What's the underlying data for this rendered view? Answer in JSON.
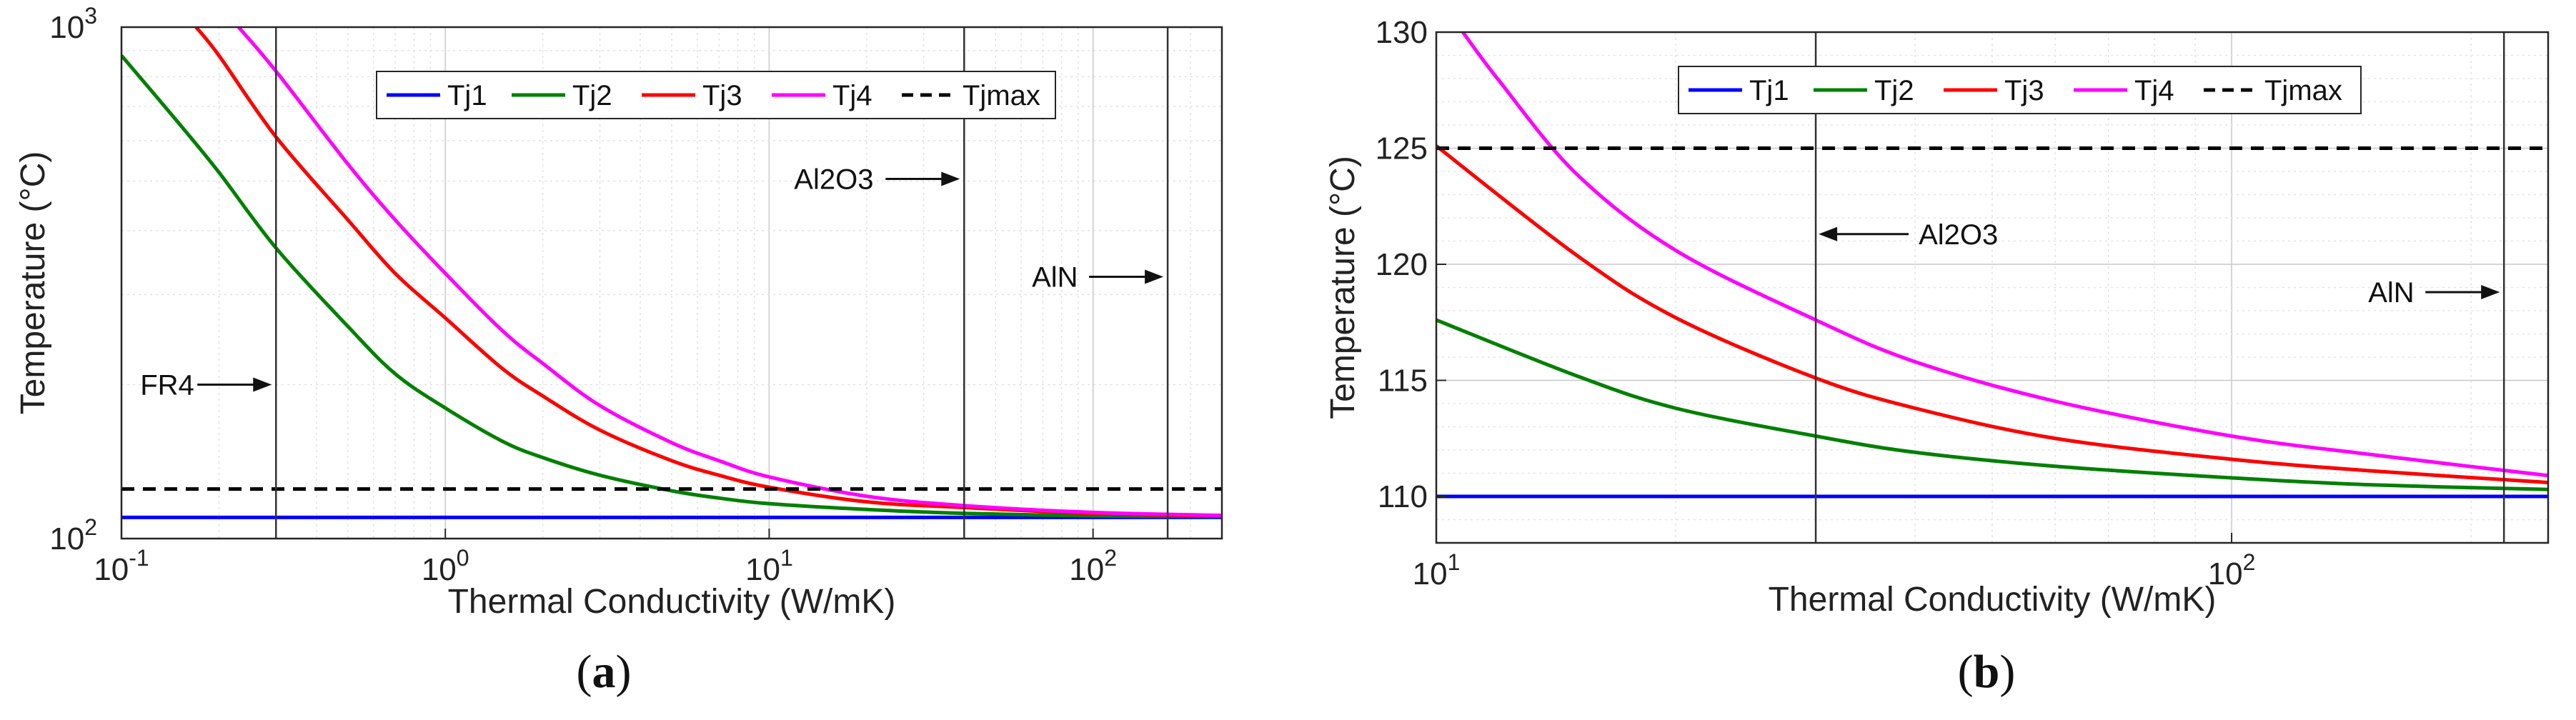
{
  "chart_data": [
    {
      "type": "line",
      "panel": "a",
      "caption": "(a)",
      "xlabel": "Thermal Conductivity (W/mK)",
      "ylabel": "Temperature (°C)",
      "xscale": "log",
      "yscale": "log",
      "xlim": [
        0.1,
        250
      ],
      "ylim": [
        100,
        1000
      ],
      "x_ticks": [
        {
          "v": 0.1,
          "b": "10",
          "e": "-1"
        },
        {
          "v": 1,
          "b": "10",
          "e": "0"
        },
        {
          "v": 10,
          "b": "10",
          "e": "1"
        },
        {
          "v": 100,
          "b": "10",
          "e": "2"
        }
      ],
      "y_ticks": [
        {
          "v": 100,
          "b": "10",
          "e": "2"
        },
        {
          "v": 1000,
          "b": "10",
          "e": "3"
        }
      ],
      "grid": true,
      "legend_position": "top",
      "series": [
        {
          "name": "Tj1",
          "color": "#0000ff",
          "dash": "solid",
          "x": [
            0.1,
            250
          ],
          "y": [
            110,
            110
          ]
        },
        {
          "name": "Tj2",
          "color": "#008000",
          "dash": "solid",
          "x": [
            0.1,
            0.15,
            0.2,
            0.3,
            0.5,
            0.7,
            1,
            1.5,
            2,
            3,
            5,
            7,
            10,
            20,
            40,
            100,
            250
          ],
          "y": [
            880,
            650,
            520,
            370,
            260,
            210,
            180,
            155,
            144,
            133,
            124,
            120,
            117,
            114,
            112,
            110.8,
            110.4
          ]
        },
        {
          "name": "Tj3",
          "color": "#ff0000",
          "dash": "solid",
          "x": [
            0.17,
            0.2,
            0.3,
            0.5,
            0.7,
            1,
            1.5,
            2,
            3,
            5,
            7,
            10,
            20,
            40,
            100,
            250
          ],
          "y": [
            1000,
            880,
            610,
            420,
            330,
            270,
            215,
            190,
            163,
            142,
            133,
            126,
            118,
            115,
            112,
            110.7
          ]
        },
        {
          "name": "Tj4",
          "color": "#ff00ff",
          "dash": "solid",
          "x": [
            0.23,
            0.3,
            0.5,
            0.7,
            1,
            1.5,
            2,
            3,
            5,
            7,
            10,
            20,
            40,
            100,
            250
          ],
          "y": [
            1000,
            820,
            540,
            420,
            330,
            255,
            220,
            182,
            154,
            142,
            132,
            121,
            116,
            112.5,
            111
          ]
        },
        {
          "name": "Tjmax",
          "color": "#000000",
          "dash": "dashed",
          "x": [
            0.1,
            250
          ],
          "y": [
            125,
            125
          ]
        }
      ],
      "vlines": [
        0.3,
        40,
        170
      ],
      "annotations": [
        {
          "text": "FR4",
          "x": 0.3,
          "y": 200
        },
        {
          "text": "Al2O3",
          "x": 40,
          "y": 505
        },
        {
          "text": "AlN",
          "x": 170,
          "y": 325
        }
      ]
    },
    {
      "type": "line",
      "panel": "b",
      "caption": "(b)",
      "xlabel": "Thermal Conductivity (W/mK)",
      "ylabel": "Temperature (°C)",
      "xscale": "log",
      "yscale": "linear",
      "xlim": [
        10,
        250
      ],
      "ylim": [
        108,
        130
      ],
      "x_ticks": [
        {
          "v": 10,
          "b": "10",
          "e": "1"
        },
        {
          "v": 100,
          "b": "10",
          "e": "2"
        }
      ],
      "y_ticks": [
        {
          "v": 110,
          "t": "110"
        },
        {
          "v": 115,
          "t": "115"
        },
        {
          "v": 120,
          "t": "120"
        },
        {
          "v": 125,
          "t": "125"
        },
        {
          "v": 130,
          "t": "130"
        }
      ],
      "grid": true,
      "legend_position": "top",
      "series": [
        {
          "name": "Tj1",
          "color": "#0000ff",
          "dash": "solid",
          "x": [
            10,
            250
          ],
          "y": [
            110,
            110
          ]
        },
        {
          "name": "Tj2",
          "color": "#008000",
          "dash": "solid",
          "x": [
            10,
            15,
            20,
            30,
            40,
            60,
            100,
            150,
            250
          ],
          "y": [
            117.6,
            115.2,
            113.8,
            112.6,
            111.9,
            111.3,
            110.8,
            110.5,
            110.3
          ]
        },
        {
          "name": "Tj3",
          "color": "#ff0000",
          "dash": "solid",
          "x": [
            10,
            15,
            20,
            30,
            40,
            60,
            100,
            150,
            250
          ],
          "y": [
            125.1,
            120.4,
            117.7,
            115.1,
            113.8,
            112.5,
            111.6,
            111.1,
            110.6
          ]
        },
        {
          "name": "Tj4",
          "color": "#ff00ff",
          "dash": "solid",
          "x": [
            10.8,
            12,
            15,
            20,
            30,
            40,
            60,
            100,
            150,
            250
          ],
          "y": [
            130,
            127.9,
            123.9,
            120.6,
            117.6,
            115.8,
            114.1,
            112.6,
            111.8,
            110.9
          ]
        },
        {
          "name": "Tjmax",
          "color": "#000000",
          "dash": "dashed",
          "x": [
            10,
            250
          ],
          "y": [
            125,
            125
          ]
        }
      ],
      "vlines": [
        30,
        220
      ],
      "annotations": [
        {
          "text": "Al2O3",
          "x": 30,
          "y": 121.3
        },
        {
          "text": "AlN",
          "x": 220,
          "y": 118.8
        }
      ]
    }
  ]
}
